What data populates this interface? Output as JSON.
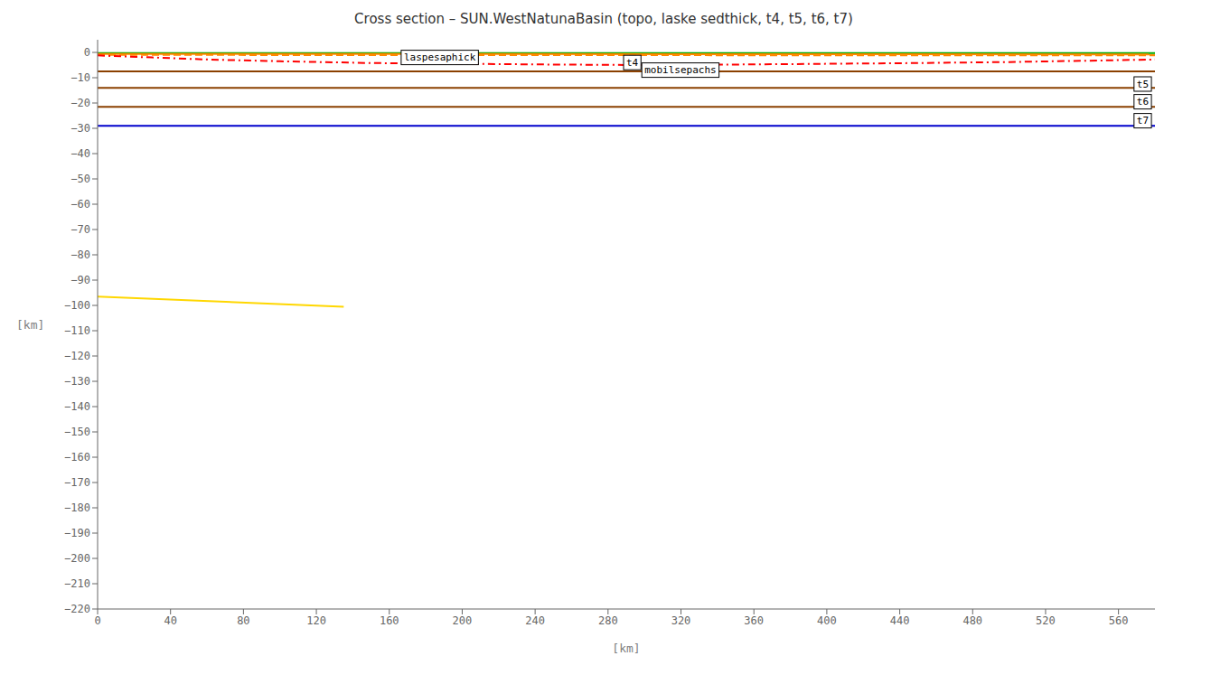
{
  "chart_data": {
    "type": "line",
    "title": "Cross section – SUN.WestNatunaBasin (topo, laske sedthick, t4, t5, t6, t7)",
    "xlabel": "[km]",
    "ylabel": "[km]",
    "xlim": [
      0,
      580
    ],
    "ylim": [
      -220,
      5
    ],
    "xticks": [
      0,
      40,
      80,
      120,
      160,
      200,
      240,
      280,
      320,
      360,
      400,
      440,
      480,
      520,
      560
    ],
    "yticks": [
      0,
      {
        "value": -10,
        "label": "−10"
      },
      {
        "value": -20,
        "label": "−20"
      },
      {
        "value": -30,
        "label": "−30"
      },
      {
        "value": -40,
        "label": "−40"
      },
      {
        "value": -50,
        "label": "−50"
      },
      {
        "value": -60,
        "label": "−60"
      },
      {
        "value": -70,
        "label": "−70"
      },
      {
        "value": -80,
        "label": "−80"
      },
      {
        "value": -90,
        "label": "−90"
      },
      {
        "value": -100,
        "label": "−100"
      },
      {
        "value": -110,
        "label": "−110"
      },
      {
        "value": -120,
        "label": "−120"
      },
      {
        "value": -130,
        "label": "−130"
      },
      {
        "value": -140,
        "label": "−140"
      },
      {
        "value": -150,
        "label": "−150"
      },
      {
        "value": -160,
        "label": "−160"
      },
      {
        "value": -170,
        "label": "−170"
      },
      {
        "value": -180,
        "label": "−180"
      },
      {
        "value": -190,
        "label": "−190"
      },
      {
        "value": -200,
        "label": "−200"
      },
      {
        "value": -210,
        "label": "−210"
      },
      {
        "value": -220,
        "label": "−220"
      }
    ],
    "grid": false,
    "series": [
      {
        "color": "#00AA00",
        "line_style": "solid",
        "x": [
          0,
          580
        ],
        "values": [
          -0.3,
          -0.3
        ]
      },
      {
        "color": "#FF8800",
        "line_style": "dashed",
        "x": [
          0,
          580
        ],
        "values": [
          -1.0,
          -1.2
        ]
      },
      {
        "color": "#FF8800",
        "line_style": "solid",
        "x": [
          0,
          580
        ],
        "values": [
          -0.6,
          -0.8
        ]
      },
      {
        "color": "#FF0000",
        "line_style": "dashdot",
        "x": [
          0,
          30,
          60,
          100,
          150,
          200,
          250,
          300,
          350,
          400,
          450,
          500,
          550,
          580
        ],
        "values": [
          -1.2,
          -2.0,
          -2.8,
          -3.5,
          -4.2,
          -4.5,
          -4.8,
          -5.0,
          -4.8,
          -4.5,
          -4.2,
          -3.8,
          -3.2,
          -2.8
        ]
      },
      {
        "color": "#8B4000",
        "line_style": "solid",
        "x": [
          0,
          580
        ],
        "values": [
          -7.5,
          -7.5
        ]
      },
      {
        "color": "#8B4000",
        "line_style": "solid",
        "x": [
          0,
          580
        ],
        "values": [
          -14.0,
          -14.0
        ]
      },
      {
        "color": "#8B4000",
        "line_style": "solid",
        "x": [
          0,
          580
        ],
        "values": [
          -21.5,
          -21.5
        ]
      },
      {
        "color": "#0000CC",
        "line_style": "solid",
        "x": [
          0,
          580
        ],
        "values": [
          -29.0,
          -29.0
        ]
      },
      {
        "color": "#FFD700",
        "line_style": "solid",
        "x": [
          0,
          135
        ],
        "values": [
          -96.5,
          -100.5
        ]
      }
    ],
    "annotations": [
      {
        "text": "laspesaphick",
        "x": 168,
        "y": -2.0
      },
      {
        "text": "t4",
        "x": 290,
        "y": -4.0
      },
      {
        "text": "mobilsepachs",
        "x": 300,
        "y": -7.0
      },
      {
        "text": "t5",
        "x": 570,
        "y": -12.5
      },
      {
        "text": "t6",
        "x": 570,
        "y": -19.5
      },
      {
        "text": "t7",
        "x": 570,
        "y": -27.0
      }
    ]
  }
}
